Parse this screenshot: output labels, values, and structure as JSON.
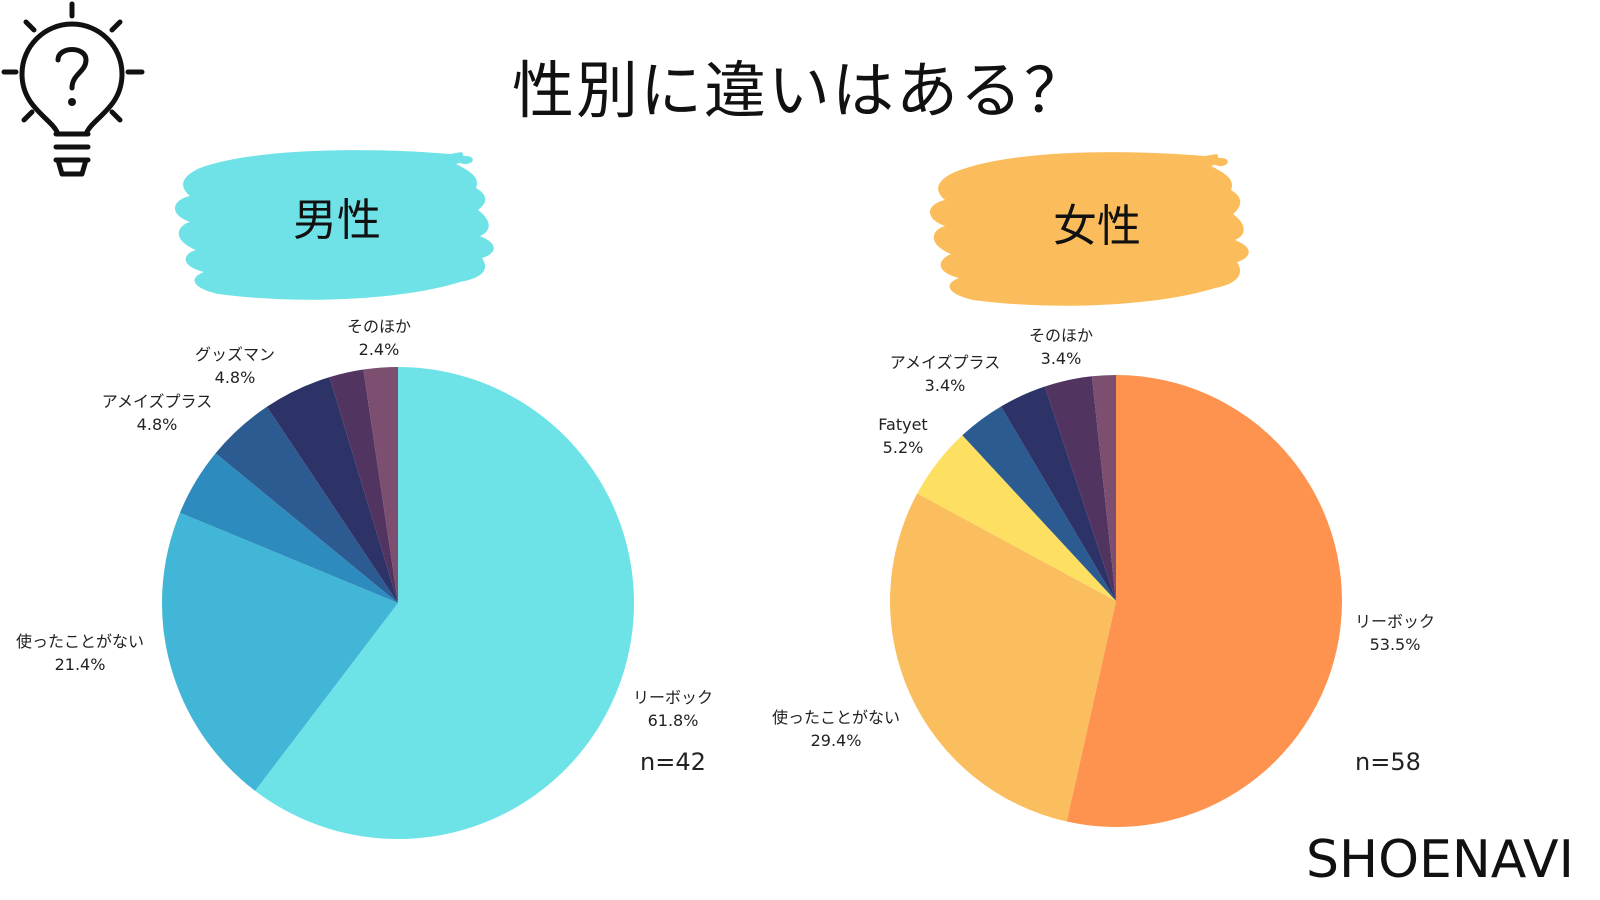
{
  "title": "性別に違いはある？",
  "brand": "SHOENAVI",
  "icon": "lightbulb-question-icon",
  "colors": {
    "male_brush": "#6ee2e6",
    "female_brush": "#fbbd5c"
  },
  "chart_data": [
    {
      "type": "pie",
      "title": "男性",
      "n_label": "n=42",
      "slices": [
        {
          "name": "リーボック",
          "value": 61.8,
          "label": "61.8%",
          "color": "#6de3e7"
        },
        {
          "name": "使ったことがない",
          "value": 21.4,
          "label": "21.4%",
          "color": "#42b6d6"
        },
        {
          "name": "",
          "value": 4.8,
          "label": "",
          "color": "#2e8bbd"
        },
        {
          "name": "アメイズプラス",
          "value": 4.8,
          "label": "4.8%",
          "color": "#2c5b92"
        },
        {
          "name": "グッズマン",
          "value": 4.8,
          "label": "4.8%",
          "color": "#2d3366"
        },
        {
          "name": "",
          "value": 2.4,
          "label": "",
          "color": "#523461"
        },
        {
          "name": "そのほか",
          "value": 2.4,
          "label": "2.4%",
          "color": "#7c4e6f"
        }
      ]
    },
    {
      "type": "pie",
      "title": "女性",
      "n_label": "n=58",
      "slices": [
        {
          "name": "リーボック",
          "value": 53.5,
          "label": "53.5%",
          "color": "#fd934f"
        },
        {
          "name": "使ったことがない",
          "value": 29.4,
          "label": "29.4%",
          "color": "#fbbe5e"
        },
        {
          "name": "Fatyet",
          "value": 5.2,
          "label": "5.2%",
          "color": "#fde062"
        },
        {
          "name": "",
          "value": 3.4,
          "label": "",
          "color": "#2c5b92"
        },
        {
          "name": "アメイズプラス",
          "value": 3.4,
          "label": "3.4%",
          "color": "#2d3366"
        },
        {
          "name": "そのほか",
          "value": 3.4,
          "label": "3.4%",
          "color": "#523461"
        },
        {
          "name": "",
          "value": 1.7,
          "label": "",
          "color": "#7c4e6f"
        }
      ]
    }
  ]
}
